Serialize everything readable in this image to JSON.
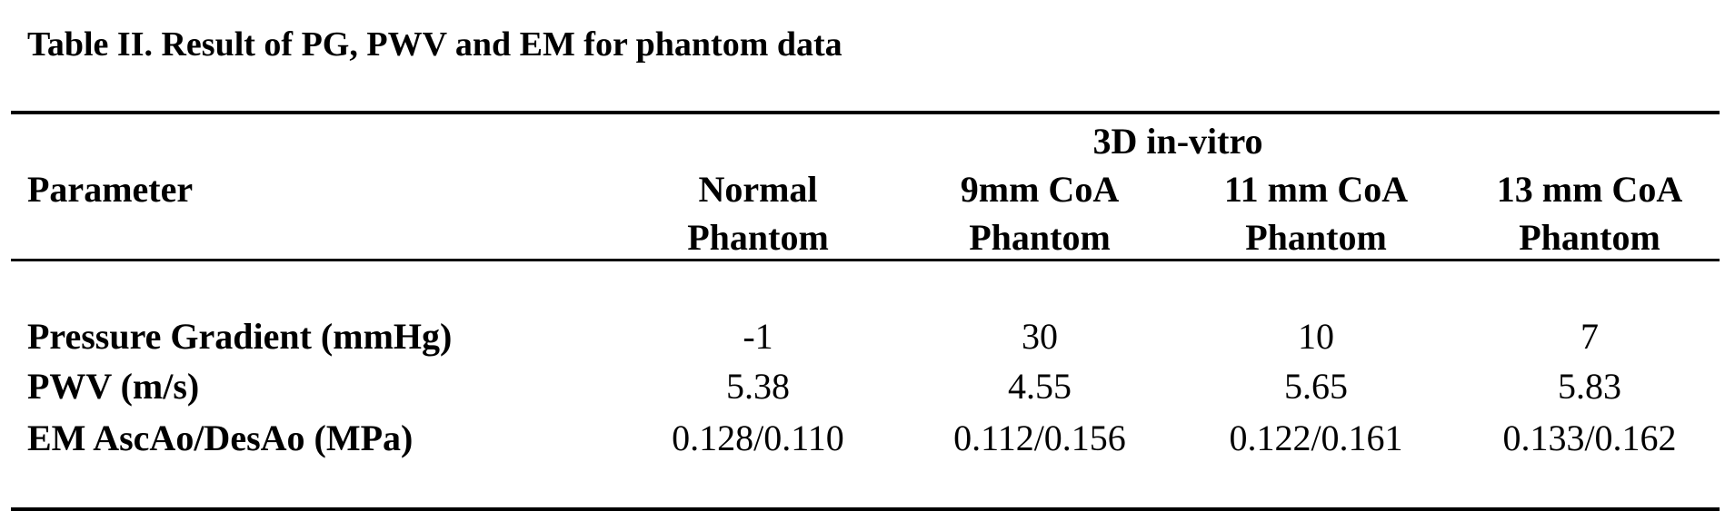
{
  "title": "Table II. Result of PG, PWV and EM for phantom data",
  "table": {
    "group_header": "3D in-vitro",
    "row_header": "Parameter",
    "columns": [
      [
        "Normal",
        "Phantom"
      ],
      [
        "9mm CoA",
        "Phantom"
      ],
      [
        "11 mm CoA",
        "Phantom"
      ],
      [
        "13 mm CoA",
        "Phantom"
      ]
    ],
    "rows": [
      [
        "Pressure Gradient (mmHg)",
        "-1",
        "30",
        "10",
        "7"
      ],
      [
        "PWV (m/s)",
        "5.38",
        "4.55",
        "5.65",
        "5.83"
      ],
      [
        "EM AscAo/DesAo (MPa)",
        "0.128/0.110",
        "0.112/0.156",
        "0.122/0.161",
        "0.133/0.162"
      ]
    ]
  }
}
